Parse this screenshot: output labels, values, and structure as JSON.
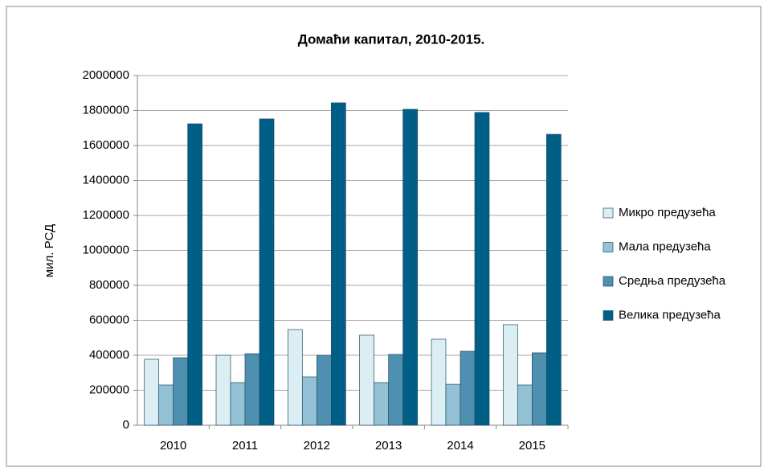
{
  "chart_data": {
    "type": "bar",
    "title": "Домаћи капитал, 2010-2015.",
    "y_label": "мил. РСД",
    "categories": [
      "2010",
      "2011",
      "2012",
      "2013",
      "2014",
      "2015"
    ],
    "series": [
      {
        "name": "Микро предузећа",
        "color": "#dbeef4",
        "values": [
          377000,
          400000,
          547000,
          515000,
          492000,
          575000
        ]
      },
      {
        "name": "Мала предузећа",
        "color": "#93c2d6",
        "values": [
          230000,
          244000,
          276000,
          244000,
          234000,
          230000
        ]
      },
      {
        "name": "Средња предузећа",
        "color": "#4f8fb0",
        "values": [
          386000,
          409000,
          400000,
          405000,
          423000,
          414000
        ]
      },
      {
        "name": "Велика предузећа",
        "color": "#005f87",
        "values": [
          1724000,
          1752000,
          1844000,
          1807000,
          1789000,
          1664000
        ]
      }
    ],
    "ylim": [
      0,
      2000000
    ],
    "yticks": [
      0,
      200000,
      400000,
      600000,
      800000,
      1000000,
      1200000,
      1400000,
      1600000,
      1800000,
      2000000
    ],
    "grid": true,
    "legend": "right"
  }
}
